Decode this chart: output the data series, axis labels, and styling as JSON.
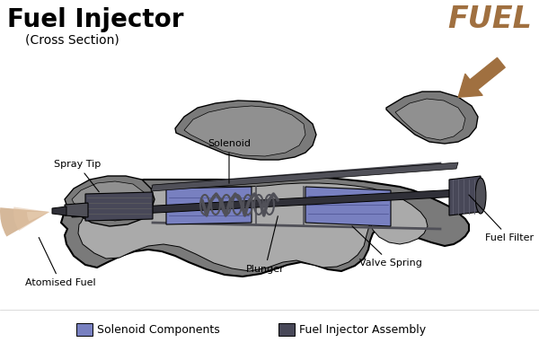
{
  "title": "Fuel Injector",
  "subtitle": "(Cross Section)",
  "background_color": "#ffffff",
  "title_fontsize": 20,
  "title_fontweight": "bold",
  "subtitle_fontsize": 10,
  "fuel_label": "FUEL",
  "fuel_label_color": "#a07040",
  "fuel_label_fontsize": 24,
  "fuel_label_fontweight": "bold",
  "body_outer_color": "#7a7a7a",
  "body_mid_color": "#909090",
  "body_inner_color": "#aaaaaa",
  "body_dark_color": "#505058",
  "solenoid_color": "#7880c0",
  "solenoid_dark_color": "#4a5090",
  "assembly_color": "#484858",
  "plunger_color": "#303038",
  "spray_color": "#c8a078",
  "annotation_fontsize": 8,
  "legend_solenoid_color": "#7880c0",
  "legend_assembly_color": "#484858",
  "legend_solenoid_label": "Solenoid Components",
  "legend_assembly_label": "Fuel Injector Assembly"
}
